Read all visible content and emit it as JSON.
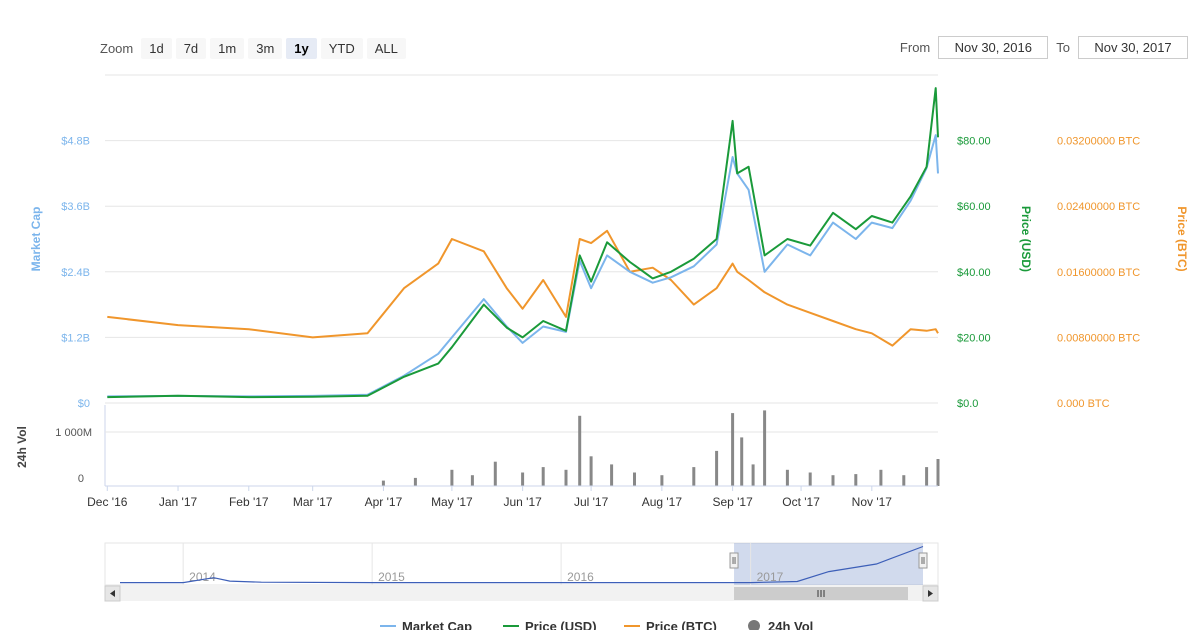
{
  "toolbar": {
    "zoom_label": "Zoom",
    "buttons": [
      "1d",
      "7d",
      "1m",
      "3m",
      "1y",
      "YTD",
      "ALL"
    ],
    "active": "1y",
    "from_label": "From",
    "from_value": "Nov 30, 2016",
    "to_label": "To",
    "to_value": "Nov 30, 2017"
  },
  "colors": {
    "market_cap": "#7cb5ec",
    "price_usd": "#1a9a3a",
    "price_btc": "#f0962c",
    "volume": "#888888",
    "navigator": "#3d5fb8"
  },
  "chart_data": [
    {
      "type": "line",
      "id": "main",
      "x_ticks": [
        "Dec '16",
        "Jan '17",
        "Feb '17",
        "Mar '17",
        "Apr '17",
        "May '17",
        "Jun '17",
        "Jul '17",
        "Aug '17",
        "Sep '17",
        "Oct '17",
        "Nov '17"
      ],
      "x": [
        "2016-12-01",
        "2017-01-01",
        "2017-02-01",
        "2017-03-01",
        "2017-03-25",
        "2017-04-10",
        "2017-04-25",
        "2017-05-01",
        "2017-05-15",
        "2017-05-25",
        "2017-06-01",
        "2017-06-10",
        "2017-06-20",
        "2017-06-26",
        "2017-07-01",
        "2017-07-08",
        "2017-07-18",
        "2017-07-28",
        "2017-08-05",
        "2017-08-15",
        "2017-08-25",
        "2017-09-01",
        "2017-09-03",
        "2017-09-08",
        "2017-09-15",
        "2017-09-25",
        "2017-10-05",
        "2017-10-15",
        "2017-10-25",
        "2017-11-01",
        "2017-11-10",
        "2017-11-18",
        "2017-11-25",
        "2017-11-29",
        "2017-11-30"
      ],
      "y_axes": [
        {
          "label": "Market Cap",
          "ticks": [
            "$0",
            "$1.2B",
            "$2.4B",
            "$3.6B",
            "$4.8B"
          ],
          "range": [
            0,
            6000000000
          ]
        },
        {
          "label": "Price (USD)",
          "ticks": [
            "$0.0",
            "$20.00",
            "$40.00",
            "$60.00",
            "$80.00"
          ],
          "range": [
            0,
            100
          ]
        },
        {
          "label": "Price (BTC)",
          "ticks": [
            "0.000 BTC",
            "0.00800000 BTC",
            "0.01600000 BTC",
            "0.02400000 BTC",
            "0.03200000 BTC"
          ],
          "range": [
            0,
            0.04
          ]
        }
      ],
      "series": [
        {
          "name": "Market Cap",
          "axis": 0,
          "values": [
            120000000,
            130000000,
            120000000,
            130000000,
            150000000,
            500000000,
            900000000,
            1200000000,
            1900000000,
            1400000000,
            1100000000,
            1400000000,
            1300000000,
            2600000000,
            2100000000,
            2700000000,
            2400000000,
            2200000000,
            2300000000,
            2500000000,
            2900000000,
            4500000000,
            4200000000,
            3900000000,
            2400000000,
            2900000000,
            2700000000,
            3300000000,
            3000000000,
            3300000000,
            3200000000,
            3700000000,
            4300000000,
            4900000000,
            4200000000
          ]
        },
        {
          "name": "Price (USD)",
          "axis": 1,
          "values": [
            1.8,
            2.2,
            1.8,
            1.9,
            2.2,
            8.0,
            12.0,
            17.0,
            30.0,
            23.0,
            20.0,
            25.0,
            22.0,
            45.0,
            37.0,
            49.0,
            43.0,
            38.0,
            40.0,
            44.0,
            50.0,
            86.0,
            70.0,
            72.0,
            45.0,
            50.0,
            48.0,
            58.0,
            53.0,
            57.0,
            55.0,
            63.0,
            72.0,
            96.0,
            81.0
          ]
        },
        {
          "name": "Price (BTC)",
          "axis": 2,
          "values": [
            0.0105,
            0.0095,
            0.009,
            0.008,
            0.0085,
            0.014,
            0.017,
            0.02,
            0.0185,
            0.014,
            0.0115,
            0.015,
            0.0105,
            0.02,
            0.0195,
            0.021,
            0.016,
            0.0165,
            0.015,
            0.012,
            0.014,
            0.017,
            0.016,
            0.015,
            0.0135,
            0.012,
            0.011,
            0.01,
            0.009,
            0.0085,
            0.007,
            0.009,
            0.0088,
            0.009,
            0.0085
          ]
        }
      ]
    },
    {
      "type": "bar",
      "id": "volume",
      "label": "24h Vol",
      "ticks": [
        "0",
        "1 000M"
      ],
      "range": [
        0,
        1500000000
      ],
      "x": [
        "2016-12-01",
        "2016-12-15",
        "2017-01-01",
        "2017-01-15",
        "2017-02-01",
        "2017-02-15",
        "2017-03-01",
        "2017-03-15",
        "2017-04-01",
        "2017-04-15",
        "2017-05-01",
        "2017-05-10",
        "2017-05-20",
        "2017-06-01",
        "2017-06-10",
        "2017-06-20",
        "2017-06-26",
        "2017-07-01",
        "2017-07-10",
        "2017-07-20",
        "2017-08-01",
        "2017-08-15",
        "2017-08-25",
        "2017-09-01",
        "2017-09-05",
        "2017-09-10",
        "2017-09-15",
        "2017-09-25",
        "2017-10-05",
        "2017-10-15",
        "2017-10-25",
        "2017-11-05",
        "2017-11-15",
        "2017-11-25",
        "2017-11-30"
      ],
      "values": [
        5000000,
        5000000,
        5000000,
        5000000,
        5000000,
        5000000,
        5000000,
        5000000,
        100000000,
        150000000,
        300000000,
        200000000,
        450000000,
        250000000,
        350000000,
        300000000,
        1300000000,
        550000000,
        400000000,
        250000000,
        200000000,
        350000000,
        650000000,
        1350000000,
        900000000,
        400000000,
        1400000000,
        300000000,
        250000000,
        200000000,
        220000000,
        300000000,
        200000000,
        350000000,
        500000000
      ]
    },
    {
      "type": "area",
      "id": "navigator",
      "x_ticks": [
        "2014",
        "2015",
        "2016",
        "2017"
      ],
      "x": [
        "2013-09-01",
        "2014-01-01",
        "2014-03-01",
        "2014-04-01",
        "2014-06-01",
        "2015-01-01",
        "2016-01-01",
        "2017-01-01",
        "2017-04-01",
        "2017-06-01",
        "2017-09-01",
        "2017-11-30"
      ],
      "values": [
        1,
        1,
        14,
        5,
        2,
        1,
        1,
        1,
        4,
        30,
        50,
        96
      ],
      "selected_range": [
        "2016-11-30",
        "2017-11-30"
      ]
    }
  ],
  "legend": [
    {
      "name": "Market Cap",
      "color": "#7cb5ec",
      "symbol": "line"
    },
    {
      "name": "Price (USD)",
      "color": "#1a9a3a",
      "symbol": "line"
    },
    {
      "name": "Price (BTC)",
      "color": "#f0962c",
      "symbol": "line"
    },
    {
      "name": "24h Vol",
      "color": "#777777",
      "symbol": "circle"
    }
  ]
}
